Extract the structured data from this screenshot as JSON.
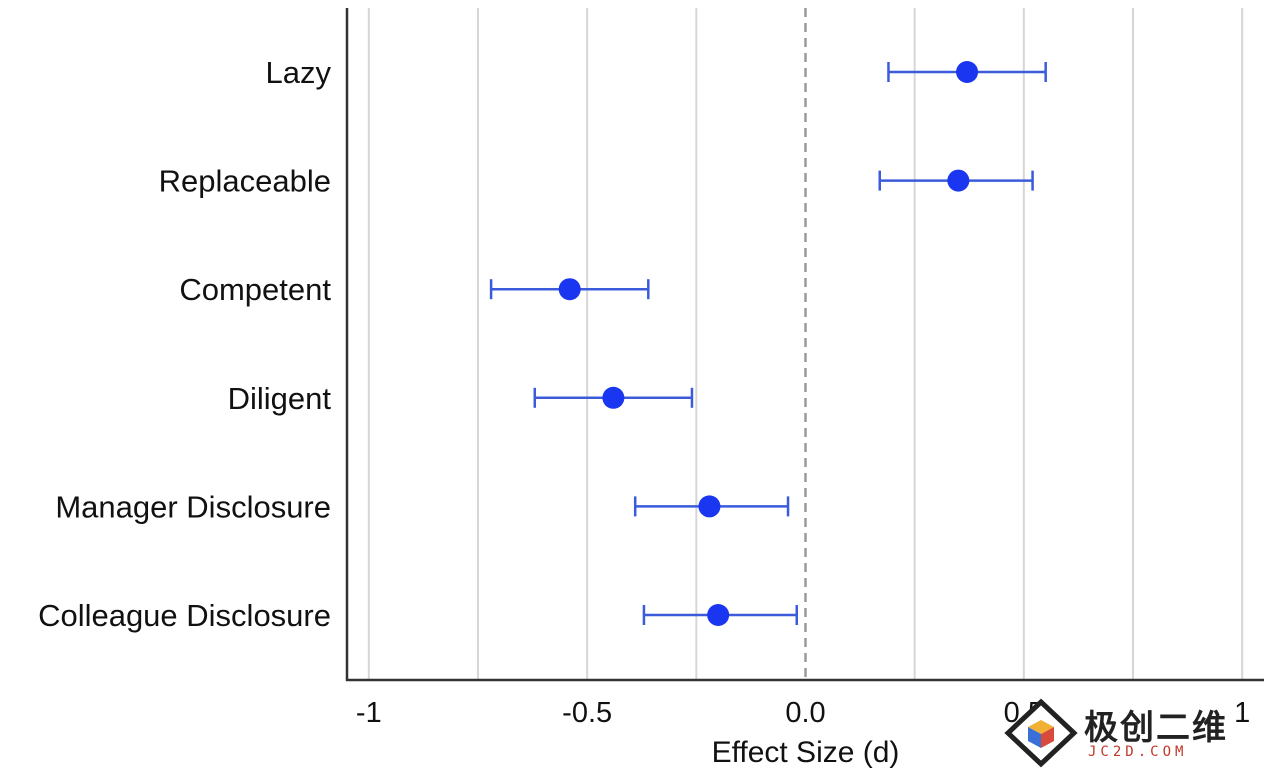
{
  "chart_data": {
    "type": "forest",
    "xlabel": "Effect Size (d)",
    "xlim": [
      -1.05,
      1.05
    ],
    "xticks": [
      -1,
      -0.5,
      0.0,
      0.5,
      1
    ],
    "xtick_labels": [
      "-1",
      "-0.5",
      "0.0",
      "0.5",
      "1"
    ],
    "reference_line": 0,
    "grid": "vertical",
    "categories": [
      "Lazy",
      "Replaceable",
      "Competent",
      "Diligent",
      "Manager Disclosure",
      "Colleague Disclosure"
    ],
    "estimates": [
      0.37,
      0.35,
      -0.54,
      -0.44,
      -0.22,
      -0.2
    ],
    "ci_lower": [
      0.19,
      0.17,
      -0.72,
      -0.62,
      -0.39,
      -0.37
    ],
    "ci_upper": [
      0.55,
      0.52,
      -0.36,
      -0.26,
      -0.04,
      -0.02
    ],
    "colors": {
      "point": "#1a36f0",
      "interval": "#3b5bdb"
    }
  },
  "watermark": {
    "brand": "极创二维",
    "domain": "JC2D.COM"
  }
}
